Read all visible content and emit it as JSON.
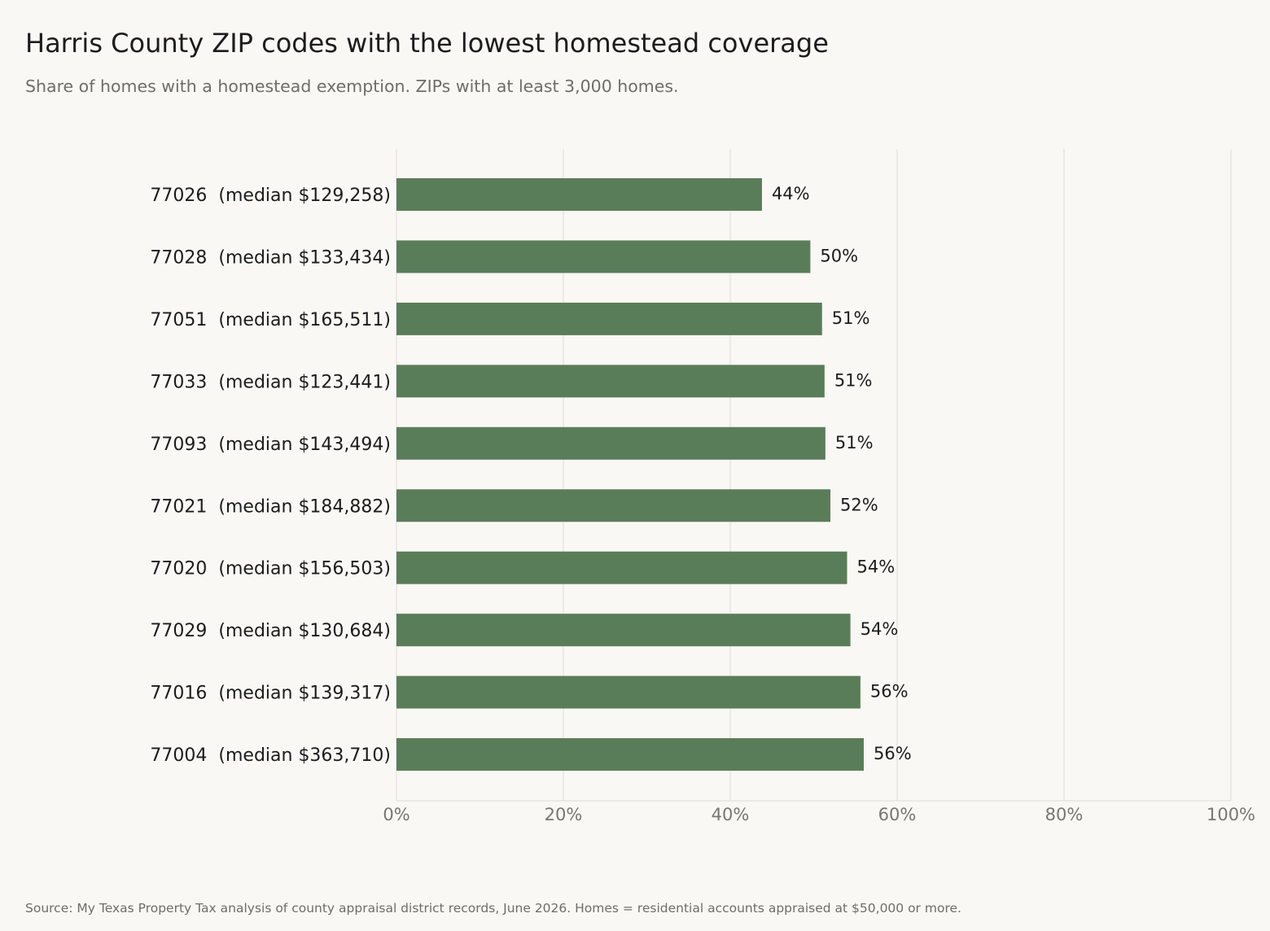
{
  "title": "Harris County ZIP codes with the lowest homestead coverage",
  "subtitle": "Share of homes with a homestead exemption. ZIPs with at least 3,000 homes.",
  "source": "Source: My Texas Property Tax analysis of county appraisal district records, June 2026. Homes = residential accounts appraised at $50,000 or more.",
  "colors": {
    "background": "#f9f8f4",
    "bar": "#5a7d59",
    "grid": "#e3e2dd",
    "label": "#1c1c1c",
    "tick": "#777772"
  },
  "chart_data": {
    "type": "bar",
    "orientation": "horizontal",
    "categories": [
      "77026  (median $129,258)",
      "77028  (median $133,434)",
      "77051  (median $165,511)",
      "77033  (median $123,441)",
      "77093  (median $143,494)",
      "77021  (median $184,882)",
      "77020  (median $156,503)",
      "77029  (median $130,684)",
      "77016  (median $139,317)",
      "77004  (median $363,710)"
    ],
    "values": [
      43.8,
      49.6,
      51.0,
      51.3,
      51.4,
      52.0,
      54.0,
      54.4,
      55.6,
      56.0
    ],
    "data_labels": [
      "44%",
      "50%",
      "51%",
      "51%",
      "51%",
      "52%",
      "54%",
      "54%",
      "56%",
      "56%"
    ],
    "x_ticks": [
      0,
      20,
      40,
      60,
      80,
      100
    ],
    "x_tick_labels": [
      "0%",
      "20%",
      "40%",
      "60%",
      "80%",
      "100%"
    ],
    "xlim": [
      0,
      100
    ],
    "grid": "vertical",
    "legend": "none"
  }
}
